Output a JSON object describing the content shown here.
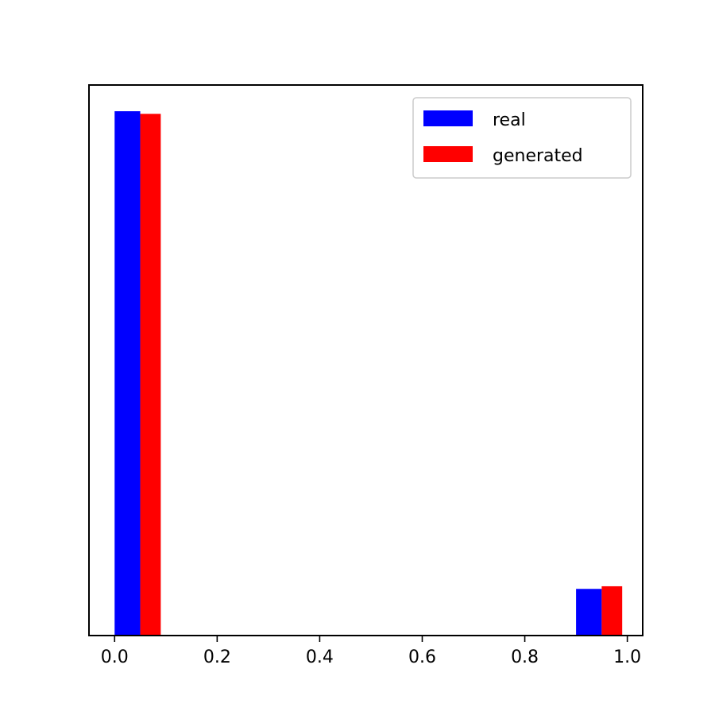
{
  "chart_data": {
    "type": "bar",
    "title": "",
    "xlabel": "",
    "ylabel": "",
    "xlim": [
      -0.05,
      1.03
    ],
    "ylim": [
      0,
      1.05
    ],
    "x_ticks": [
      "0.0",
      "0.2",
      "0.4",
      "0.6",
      "0.8",
      "1.0"
    ],
    "y_ticks_visible": false,
    "grid": false,
    "legend_position": "top-right",
    "series": [
      {
        "name": "real",
        "color": "#0000ff",
        "bars": [
          {
            "x_start": 0.0,
            "x_end": 0.05,
            "value": 1.0
          },
          {
            "x_start": 0.9,
            "x_end": 0.95,
            "value": 0.089
          }
        ]
      },
      {
        "name": "generated",
        "color": "#ff0000",
        "bars": [
          {
            "x_start": 0.05,
            "x_end": 0.09,
            "value": 0.995
          },
          {
            "x_start": 0.95,
            "x_end": 0.99,
            "value": 0.094
          }
        ]
      }
    ]
  }
}
